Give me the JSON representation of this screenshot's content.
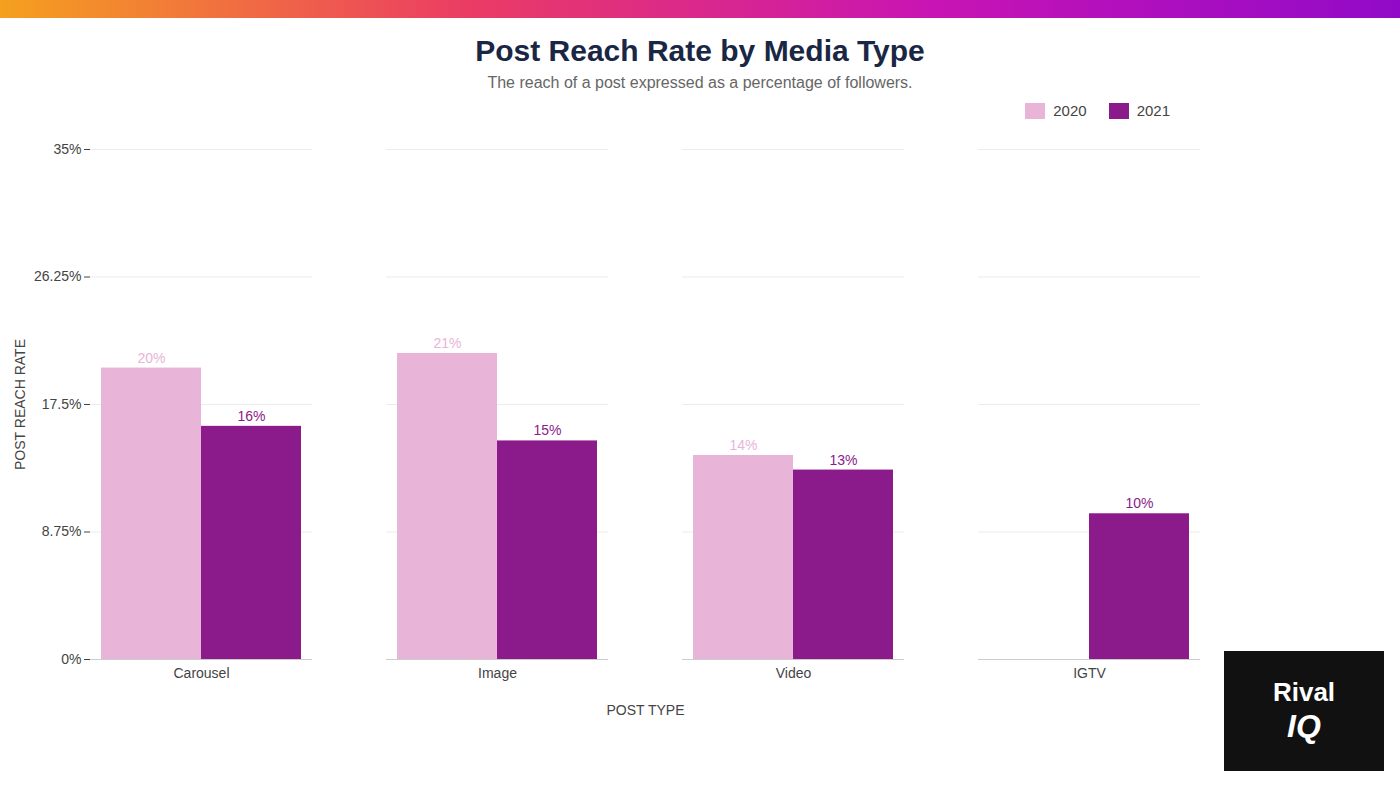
{
  "chart_data": {
    "type": "bar",
    "title": "Post Reach Rate by Media Type",
    "subtitle": "The reach of a post expressed as a percentage of followers.",
    "xlabel": "POST TYPE",
    "ylabel": "POST REACH RATE",
    "categories": [
      "Carousel",
      "Image",
      "Video",
      "IGTV"
    ],
    "series": [
      {
        "name": "2020",
        "color": "#e8b4d8",
        "values": [
          0.2,
          0.21,
          0.14,
          null
        ],
        "value_labels": [
          "20%",
          "21%",
          "14%",
          null
        ]
      },
      {
        "name": "2021",
        "color": "#8b1a8b",
        "values": [
          0.16,
          0.15,
          0.13,
          0.1
        ],
        "value_labels": [
          "16%",
          "15%",
          "13%",
          "10%"
        ]
      }
    ],
    "ylim": [
      0,
      0.35
    ],
    "yticks": [
      {
        "value": 0,
        "label": "0%"
      },
      {
        "value": 0.0875,
        "label": "8.75%"
      },
      {
        "value": 0.175,
        "label": "17.5%"
      },
      {
        "value": 0.2625,
        "label": "26.25%"
      },
      {
        "value": 0.35,
        "label": "35%"
      }
    ],
    "grid": true,
    "legend": "upper right",
    "data_labels": true,
    "annotations": [
      "Rival",
      "IQ"
    ]
  }
}
